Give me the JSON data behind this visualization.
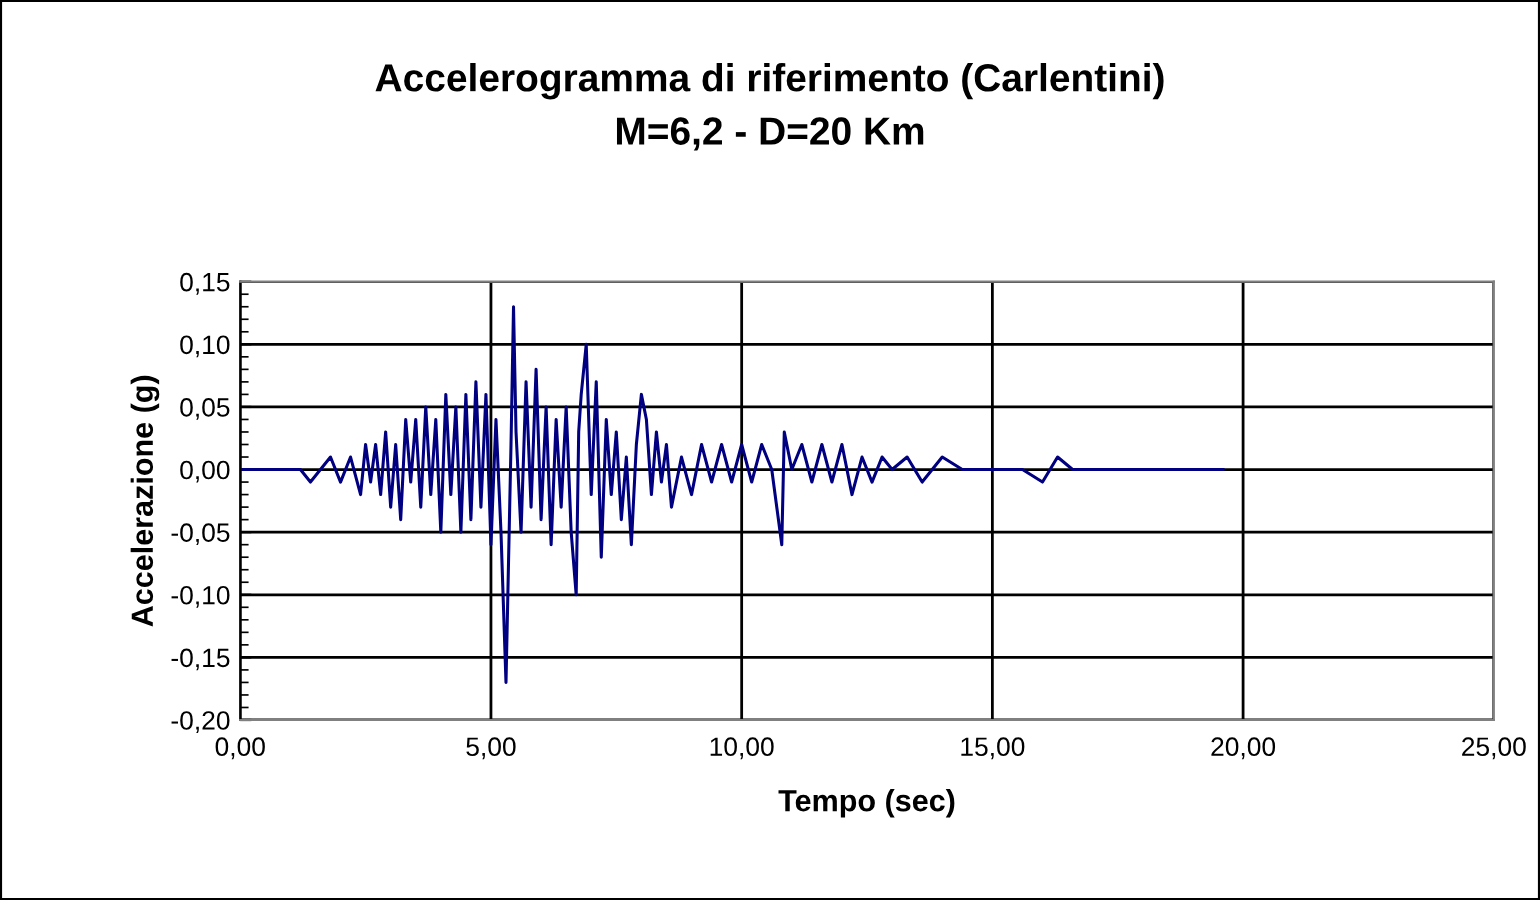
{
  "chart_data": {
    "type": "line",
    "title": "Accelerogramma di riferimento (Carlentini)\nM=6,2 - D=20 Km",
    "xlabel": "Tempo (sec)",
    "ylabel": "Accelerazione (g)",
    "x": [
      0,
      1.2,
      1.4,
      1.6,
      1.8,
      2.0,
      2.2,
      2.4,
      2.5,
      2.6,
      2.7,
      2.8,
      2.9,
      3.0,
      3.1,
      3.2,
      3.3,
      3.4,
      3.5,
      3.6,
      3.7,
      3.8,
      3.9,
      4.0,
      4.1,
      4.2,
      4.3,
      4.4,
      4.5,
      4.6,
      4.7,
      4.8,
      4.9,
      5.0,
      5.1,
      5.2,
      5.3,
      5.4,
      5.45,
      5.5,
      5.6,
      5.7,
      5.8,
      5.9,
      6.0,
      6.1,
      6.2,
      6.3,
      6.4,
      6.5,
      6.6,
      6.7,
      6.75,
      6.8,
      6.9,
      7.0,
      7.1,
      7.2,
      7.3,
      7.4,
      7.5,
      7.6,
      7.7,
      7.8,
      7.9,
      8.0,
      8.1,
      8.2,
      8.3,
      8.4,
      8.5,
      8.6,
      8.8,
      9.0,
      9.2,
      9.4,
      9.6,
      9.8,
      10.0,
      10.2,
      10.4,
      10.6,
      10.8,
      10.85,
      11.0,
      11.2,
      11.4,
      11.6,
      11.8,
      12.0,
      12.2,
      12.4,
      12.6,
      12.8,
      13.0,
      13.3,
      13.6,
      14.0,
      14.4,
      14.8,
      15.2,
      15.6,
      16.0,
      16.3,
      16.6,
      17.0,
      17.4,
      17.8,
      18.2,
      18.6,
      19.0,
      19.4,
      19.6
    ],
    "series": [
      {
        "color": "#000080",
        "values": [
          0,
          0,
          -0.01,
          0.0,
          0.01,
          -0.01,
          0.01,
          -0.02,
          0.02,
          -0.01,
          0.02,
          -0.02,
          0.03,
          -0.03,
          0.02,
          -0.04,
          0.04,
          -0.01,
          0.04,
          -0.03,
          0.05,
          -0.02,
          0.04,
          -0.05,
          0.06,
          -0.02,
          0.05,
          -0.05,
          0.06,
          -0.04,
          0.07,
          -0.03,
          0.06,
          -0.06,
          0.04,
          -0.05,
          -0.17,
          0.02,
          0.13,
          0.03,
          -0.05,
          0.07,
          -0.03,
          0.08,
          -0.04,
          0.05,
          -0.06,
          0.04,
          -0.03,
          0.05,
          -0.05,
          -0.1,
          0.03,
          0.06,
          0.1,
          -0.02,
          0.07,
          -0.07,
          0.04,
          -0.02,
          0.03,
          -0.04,
          0.01,
          -0.06,
          0.02,
          0.06,
          0.04,
          -0.02,
          0.03,
          -0.01,
          0.02,
          -0.03,
          0.01,
          -0.02,
          0.02,
          -0.01,
          0.02,
          -0.01,
          0.02,
          -0.01,
          0.02,
          0.0,
          -0.06,
          0.03,
          0.0,
          0.02,
          -0.01,
          0.02,
          -0.01,
          0.02,
          -0.02,
          0.01,
          -0.01,
          0.01,
          0.0,
          0.01,
          -0.01,
          0.01,
          0.0,
          0.0,
          0.0,
          0.0,
          -0.01,
          0.01,
          0.0,
          0.0,
          0.0,
          0.0,
          0.0,
          0.0,
          0.0,
          0.0,
          0.0
        ]
      }
    ],
    "xlim": [
      0,
      25
    ],
    "xticks": [
      {
        "value": 0,
        "label": "0,00"
      },
      {
        "value": 5,
        "label": "5,00"
      },
      {
        "value": 10,
        "label": "10,00"
      },
      {
        "value": 15,
        "label": "15,00"
      },
      {
        "value": 20,
        "label": "20,00"
      },
      {
        "value": 25,
        "label": "25,00"
      }
    ],
    "ylim": [
      -0.2,
      0.15
    ],
    "yticks": [
      {
        "value": -0.2,
        "label": "-0,20"
      },
      {
        "value": -0.15,
        "label": "-0,15"
      },
      {
        "value": -0.1,
        "label": "-0,10"
      },
      {
        "value": -0.05,
        "label": "-0,05"
      },
      {
        "value": 0,
        "label": "0,00"
      },
      {
        "value": 0.05,
        "label": "0,05"
      },
      {
        "value": 0.1,
        "label": "0,10"
      },
      {
        "value": 0.15,
        "label": "0,15"
      }
    ],
    "grid": true,
    "legend": false,
    "marker": "none",
    "line_style": "solid"
  }
}
